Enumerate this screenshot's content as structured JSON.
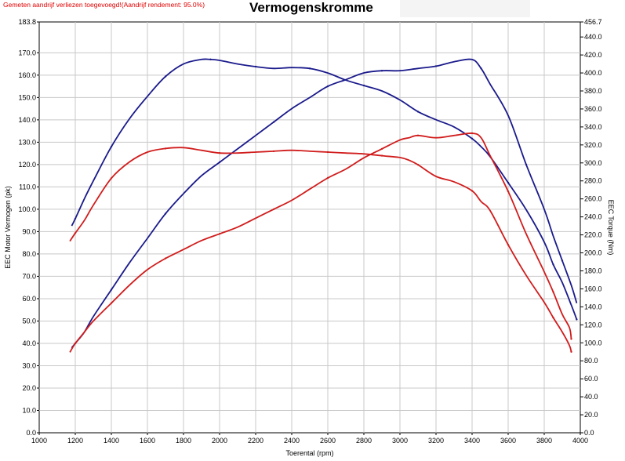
{
  "header": {
    "note": "Gemeten aandrijf verliezen toegevoegd!(Aandrijf rendement: 95.0%)",
    "title": "Vermogenskromme"
  },
  "chart_data": {
    "type": "line",
    "title": "Vermogenskromme",
    "xlabel": "Toerental (rpm)",
    "ylabel_left": "EEC Motor Vermogen (pk)",
    "ylabel_right": "EEC Torque (Nm)",
    "xlim": [
      1000,
      4000
    ],
    "ylim_left": [
      0.0,
      183.8
    ],
    "ylim_right": [
      0.0,
      456.7
    ],
    "x_ticks": [
      "1000",
      "1200",
      "1400",
      "1600",
      "1800",
      "2000",
      "2200",
      "2400",
      "2600",
      "2800",
      "3000",
      "3200",
      "3400",
      "3600",
      "3800",
      "4000"
    ],
    "y_left_ticks": [
      "0.0",
      "10.0",
      "20.0",
      "30.0",
      "40.0",
      "50.0",
      "60.0",
      "70.0",
      "80.0",
      "90.0",
      "100.0",
      "110.0",
      "120.0",
      "130.0",
      "140.0",
      "150.0",
      "160.0",
      "170.0",
      "183.8"
    ],
    "y_right_ticks": [
      "0.0",
      "20.0",
      "40.0",
      "60.0",
      "80.0",
      "100.0",
      "120.0",
      "140.0",
      "160.0",
      "180.0",
      "200.0",
      "220.0",
      "240.0",
      "260.0",
      "280.0",
      "300.0",
      "320.0",
      "340.0",
      "360.0",
      "380.0",
      "400.0",
      "420.0",
      "440.0",
      "456.7"
    ],
    "grid": true,
    "series": [
      {
        "axis": "right",
        "color": "#1a1a8c",
        "x": [
          1180,
          1200,
          1250,
          1300,
          1400,
          1500,
          1600,
          1700,
          1800,
          1900,
          1950,
          2000,
          2100,
          2200,
          2300,
          2400,
          2500,
          2600,
          2700,
          2800,
          2900,
          3000,
          3100,
          3200,
          3300,
          3400,
          3450,
          3500,
          3600,
          3700,
          3800,
          3850,
          3900,
          3950,
          3980
        ],
        "y": [
          230,
          238,
          260,
          280,
          318,
          349,
          374,
          396,
          410,
          415,
          415,
          414,
          410,
          407,
          405,
          406,
          405,
          400,
          392,
          386,
          380,
          370,
          357,
          348,
          340,
          327,
          318,
          307,
          278,
          248,
          212,
          187,
          167,
          142,
          126
        ]
      },
      {
        "axis": "left",
        "color": "#1a1a8c",
        "x": [
          1180,
          1200,
          1250,
          1300,
          1400,
          1500,
          1600,
          1700,
          1800,
          1900,
          2000,
          2100,
          2200,
          2300,
          2400,
          2500,
          2600,
          2700,
          2800,
          2900,
          3000,
          3100,
          3200,
          3300,
          3400,
          3450,
          3500,
          3600,
          3700,
          3800,
          3850,
          3900,
          3950,
          3980
        ],
        "y": [
          38,
          40,
          45,
          52,
          64,
          76,
          87,
          98,
          107,
          115,
          121,
          127,
          133,
          139,
          145,
          150,
          155,
          158,
          161,
          162,
          162,
          163,
          164,
          166,
          167,
          163,
          156,
          142,
          120,
          100,
          88,
          77,
          66,
          58
        ]
      },
      {
        "axis": "right",
        "color": "#d11c1c",
        "x": [
          1170,
          1200,
          1250,
          1300,
          1400,
          1500,
          1600,
          1700,
          1800,
          1900,
          2000,
          2100,
          2200,
          2300,
          2400,
          2500,
          2600,
          2700,
          2800,
          2900,
          3000,
          3050,
          3100,
          3200,
          3300,
          3400,
          3450,
          3500,
          3600,
          3700,
          3800,
          3850,
          3900,
          3940,
          3950
        ],
        "y": [
          213,
          222,
          236,
          253,
          283,
          301,
          312,
          316,
          317,
          314,
          311,
          311,
          312,
          313,
          314,
          313,
          312,
          311,
          310,
          308,
          306,
          303,
          298,
          285,
          279,
          269,
          257,
          247,
          209,
          175,
          145,
          128,
          112,
          97,
          90
        ]
      },
      {
        "axis": "left",
        "color": "#d11c1c",
        "x": [
          1170,
          1200,
          1250,
          1300,
          1400,
          1500,
          1600,
          1700,
          1800,
          1900,
          2000,
          2100,
          2200,
          2300,
          2400,
          2500,
          2600,
          2700,
          2800,
          2900,
          3000,
          3050,
          3100,
          3200,
          3300,
          3400,
          3450,
          3500,
          3600,
          3700,
          3800,
          3850,
          3900,
          3940,
          3950
        ],
        "y": [
          36,
          40,
          45,
          50,
          58,
          66,
          73,
          78,
          82,
          86,
          89,
          92,
          96,
          100,
          104,
          109,
          114,
          118,
          123,
          127,
          131,
          132,
          133,
          132,
          133,
          134,
          132,
          124,
          108,
          89,
          72,
          63,
          53,
          47,
          42
        ]
      }
    ]
  }
}
